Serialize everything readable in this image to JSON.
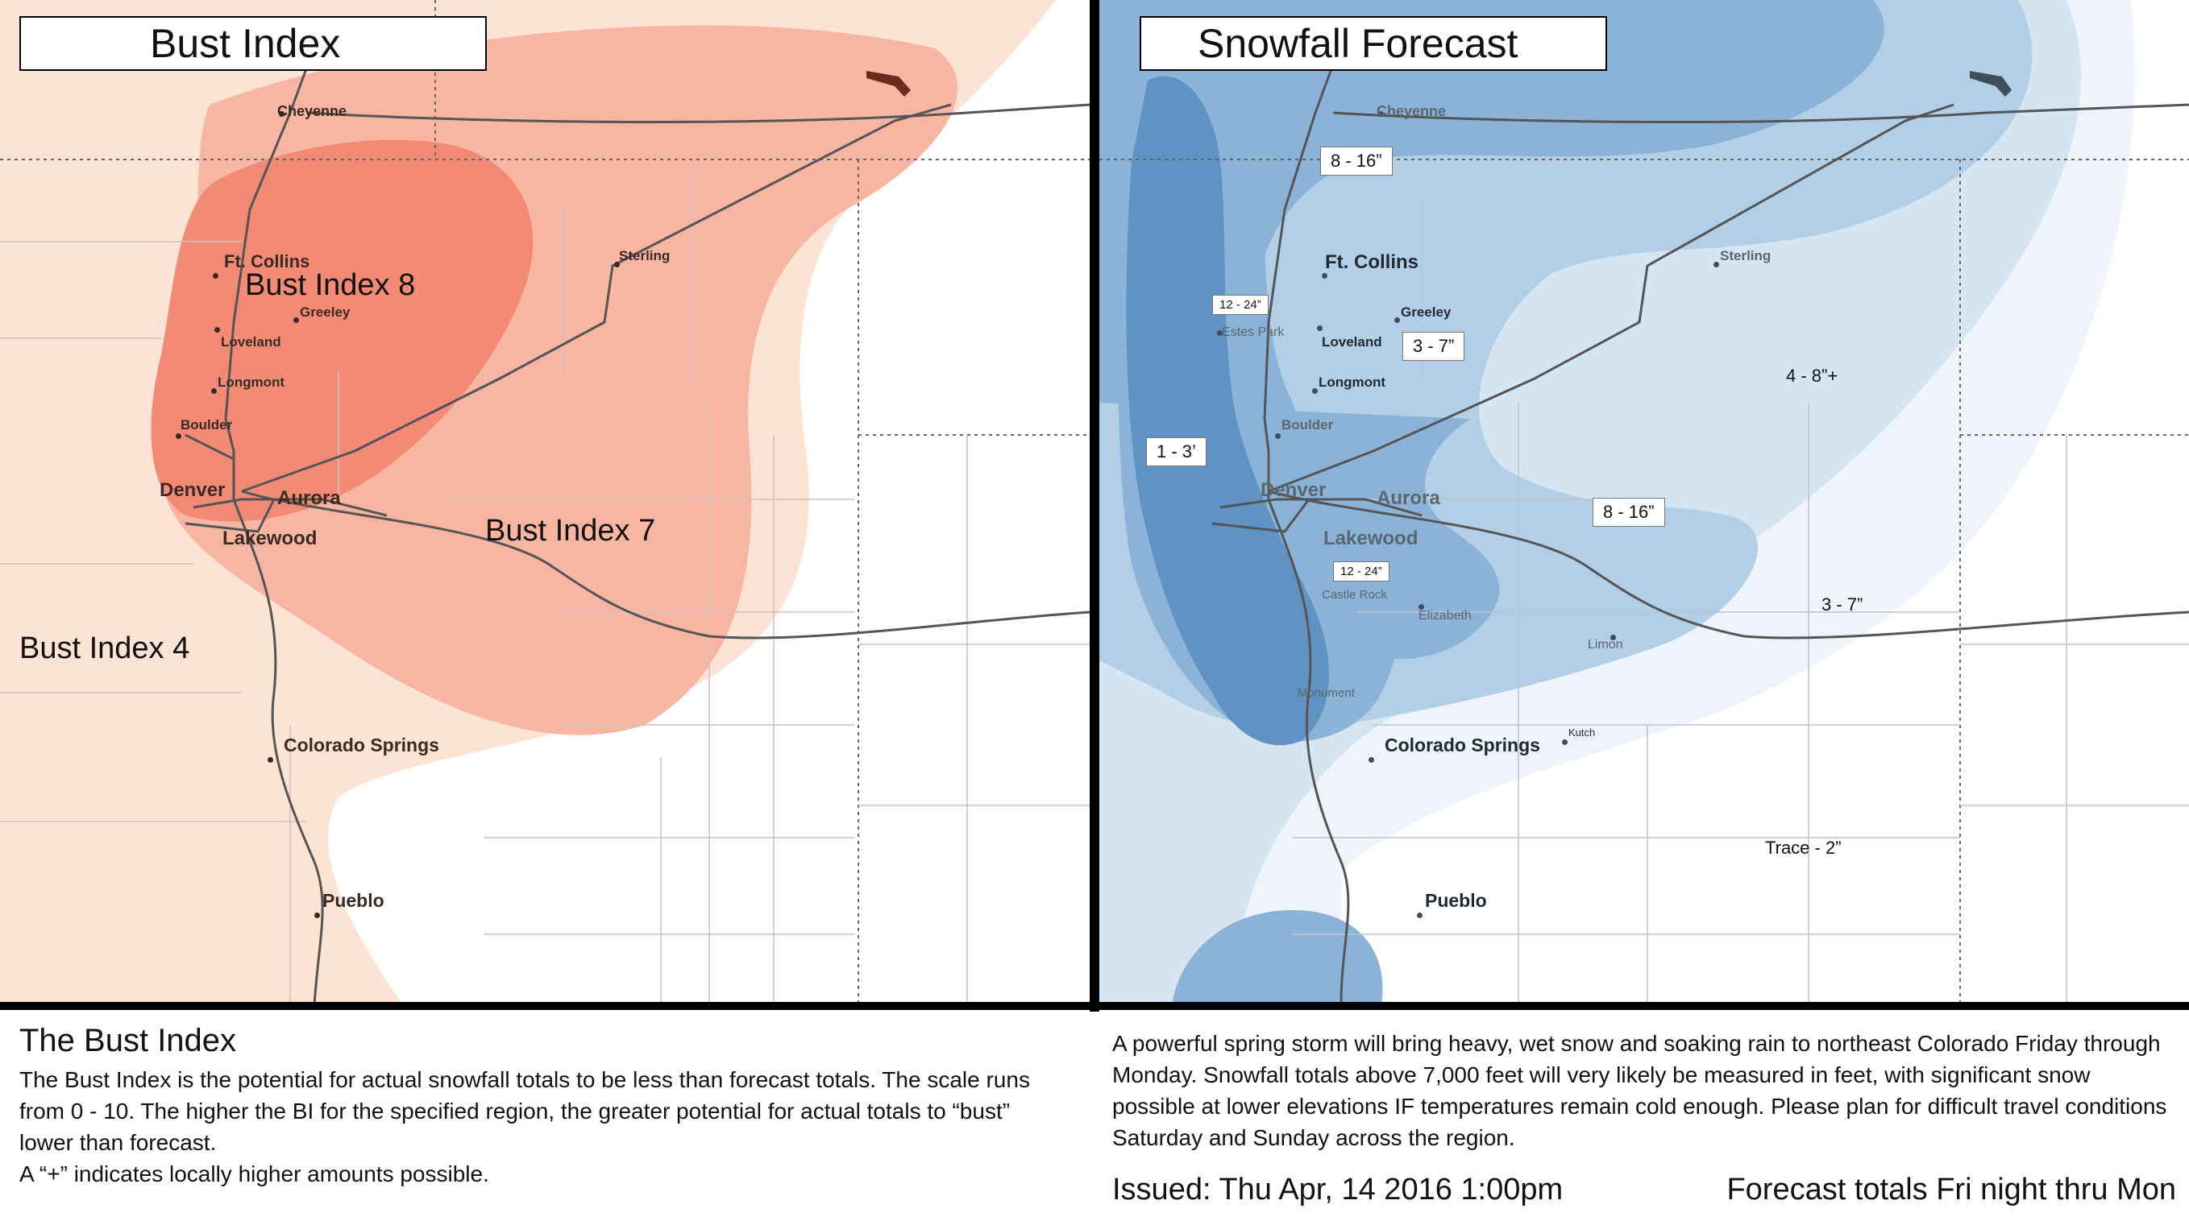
{
  "left_panel": {
    "title": "Bust Index",
    "zone_labels": [
      "Bust Index 8",
      "Bust Index 7",
      "Bust Index 4"
    ],
    "cities": [
      "Cheyenne",
      "Ft. Collins",
      "Greeley",
      "Loveland",
      "Longmont",
      "Boulder",
      "Sterling",
      "Denver",
      "Aurora",
      "Lakewood",
      "Colorado Springs",
      "Pueblo"
    ],
    "colors": {
      "bi4": "#fde3d4",
      "bi7": "#f8b5a2",
      "bi8": "#f28a75",
      "roads": "#555555"
    }
  },
  "right_panel": {
    "title": "Snowfall Forecast",
    "amounts": [
      "8 - 16”",
      "12 - 24”",
      "3 - 7”",
      "4 - 8”+",
      "1 - 3’",
      "8 - 16”",
      "12 - 24”",
      "3 - 7”",
      "Trace - 2”"
    ],
    "cities": [
      "Cheyenne",
      "Ft. Collins",
      "Greeley",
      "Estes Park",
      "Loveland",
      "Longmont",
      "Boulder",
      "Sterling",
      "Denver",
      "Aurora",
      "Lakewood",
      "Castle Rock",
      "Elizabeth",
      "Limon",
      "Monument",
      "Colorado Springs",
      "Kutch",
      "Pueblo"
    ],
    "colors": {
      "trace": "#eef4fa",
      "light": "#d5e5f2",
      "mid": "#b3cfe6",
      "heavy": "#8ab3d7",
      "heaviest": "#5f93c4"
    }
  },
  "bottom": {
    "heading": "The Bust Index",
    "bust_desc": "The Bust Index is the potential for actual snowfall totals to be less than forecast totals. The scale runs from 0 - 10. The higher the BI for the specified region, the greater potential for actual totals to “bust” lower than forecast.",
    "plus_note": "A “+” indicates locally higher amounts possible.",
    "storm_desc": "A powerful spring storm will bring heavy, wet snow and soaking rain to northeast Colorado Friday through Monday. Snowfall totals above 7,000 feet will very likely be measured in feet, with significant snow possible at lower elevations IF temperatures remain cold enough. Please plan for difficult travel conditions Saturday and Sunday across the region.",
    "issued": "Issued: Thu Apr, 14 2016 1:00pm",
    "period": "Forecast totals Fri night thru Mon"
  }
}
